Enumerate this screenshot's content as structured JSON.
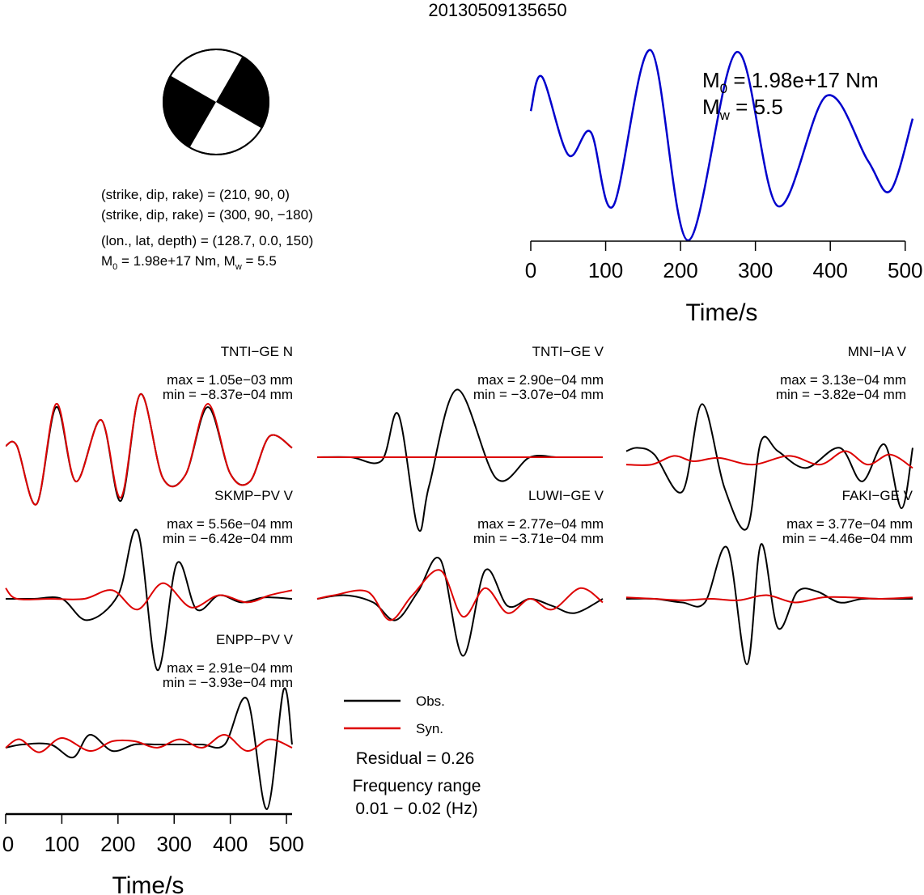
{
  "title": "20130509135650",
  "beachball": {
    "fault1": "(strike, dip, rake) = (210, 90, 0)",
    "fault2": "(strike, dip, rake) = (300, 90, −180)",
    "location": "(lon., lat, depth) = (128.7, 0.0, 150)",
    "moment_line": {
      "m0_prefix": "M",
      "m0_sub": "0",
      "m0_value": " = 1.98e+17 Nm, M",
      "mw_sub": "w",
      "mw_value": " = 5.5"
    }
  },
  "stf": {
    "m0_main": "M",
    "m0_sub": "0",
    "m0_value": " = 1.98e+17 Nm",
    "mw_main": "M",
    "mw_sub": "w",
    "mw_value": " = 5.5"
  },
  "legend": {
    "obs": "Obs.",
    "syn": "Syn."
  },
  "residual": "Residual = 0.26",
  "freq_label": "Frequency range",
  "freq_range": "0.01 − 0.02 (Hz)",
  "colors": {
    "obs": "#000000",
    "syn": "#dd0000",
    "stf": "#0000cc"
  },
  "chart_data": [
    {
      "type": "line",
      "name": "source-time-function",
      "xlabel": "Time/s",
      "xlim": [
        0,
        510
      ],
      "xticks": [
        "0",
        "100",
        "200",
        "300",
        "400",
        "500"
      ],
      "series": [
        {
          "x": [
            0,
            15,
            50,
            80,
            110,
            160,
            210,
            275,
            330,
            395,
            450,
            480,
            510
          ],
          "y": [
            0.68,
            0.86,
            0.45,
            0.57,
            0.18,
            1.0,
            0.0,
            0.99,
            0.18,
            0.76,
            0.42,
            0.26,
            0.64
          ]
        }
      ]
    },
    {
      "type": "line",
      "name": "waveform-comparison",
      "xlabel": "Time/s",
      "xlim": [
        0,
        510
      ],
      "xticks": [
        "0",
        "100",
        "200",
        "300",
        "400",
        "500"
      ],
      "series_names": [
        "Obs.",
        "Syn."
      ],
      "stations": [
        {
          "label": "TNTI−GE N",
          "max": "max = 1.05e−03 mm",
          "min": "min = −8.37e−04 mm",
          "obs": {
            "x": [
              0,
              20,
              55,
              90,
              125,
              170,
              205,
              240,
              280,
              320,
              360,
              400,
              435,
              470,
              510
            ],
            "y": [
              0.05,
              0.05,
              -0.85,
              0.65,
              -0.5,
              0.45,
              -0.8,
              0.85,
              -0.45,
              -0.4,
              0.65,
              -0.38,
              -0.5,
              0.2,
              0.02
            ]
          },
          "syn": {
            "x": [
              0,
              20,
              55,
              90,
              125,
              170,
              205,
              240,
              280,
              320,
              360,
              400,
              435,
              470,
              510
            ],
            "y": [
              0.05,
              0.05,
              -0.85,
              0.7,
              -0.5,
              0.45,
              -0.75,
              0.85,
              -0.45,
              -0.4,
              0.7,
              -0.38,
              -0.5,
              0.2,
              0.02
            ]
          }
        },
        {
          "label": "TNTI−GE V",
          "max": "max = 2.90e−04 mm",
          "min": "min = −3.07e−04 mm",
          "obs": {
            "x": [
              0,
              60,
              115,
              145,
              180,
              200,
              250,
              320,
              380,
              430,
              490,
              510
            ],
            "y": [
              0.0,
              0.0,
              -0.05,
              0.6,
              -1.0,
              -0.4,
              0.95,
              -0.3,
              0.0,
              0.0,
              0.0,
              0.0
            ]
          },
          "syn": {
            "x": [
              0,
              510
            ],
            "y": [
              0.0,
              0.0
            ]
          }
        },
        {
          "label": "MNI−IA V",
          "max": "max = 3.13e−04 mm",
          "min": "min = −3.82e−04 mm",
          "obs": {
            "x": [
              0,
              20,
              50,
              100,
              135,
              175,
              215,
              240,
              270,
              320,
              380,
              420,
              460,
              490,
              510
            ],
            "y": [
              0.15,
              0.2,
              0.1,
              -0.45,
              0.85,
              -0.4,
              -1.0,
              0.3,
              0.15,
              -0.1,
              0.2,
              -0.3,
              0.25,
              -0.7,
              0.2
            ]
          },
          "syn": {
            "x": [
              0,
              45,
              85,
              120,
              165,
              225,
              290,
              345,
              390,
              430,
              470,
              510
            ],
            "y": [
              -0.05,
              -0.05,
              0.08,
              0.0,
              0.05,
              -0.05,
              0.08,
              -0.05,
              0.15,
              -0.05,
              0.1,
              -0.1
            ]
          }
        },
        {
          "label": "SKMP−PV V",
          "max": "max = 5.56e−04 mm",
          "min": "min = −6.42e−04 mm",
          "obs": {
            "x": [
              0,
              50,
              100,
              145,
              200,
              235,
              270,
              305,
              340,
              380,
              420,
              460,
              510
            ],
            "y": [
              0.0,
              0.0,
              0.0,
              -0.3,
              0.05,
              0.95,
              -1.0,
              0.5,
              -0.15,
              0.05,
              -0.05,
              0.02,
              0.0
            ]
          },
          "syn": {
            "x": [
              0,
              20,
              80,
              140,
              190,
              235,
              280,
              330,
              380,
              430,
              470,
              510
            ],
            "y": [
              0.15,
              0.0,
              0.0,
              0.0,
              0.12,
              -0.15,
              0.22,
              -0.12,
              0.05,
              -0.05,
              0.05,
              0.12
            ]
          }
        },
        {
          "label": "LUWI−GE V",
          "max": "max = 2.77e−04 mm",
          "min": "min = −3.71e−04 mm",
          "obs": {
            "x": [
              0,
              50,
              100,
              140,
              180,
              220,
              260,
              300,
              340,
              380,
              420,
              460,
              510
            ],
            "y": [
              0.0,
              0.05,
              -0.05,
              -0.3,
              0.1,
              0.55,
              -0.8,
              0.4,
              -0.1,
              0.0,
              -0.1,
              -0.2,
              0.0
            ]
          },
          "syn": {
            "x": [
              0,
              30,
              90,
              130,
              170,
              220,
              260,
              300,
              340,
              380,
              420,
              470,
              510
            ],
            "y": [
              0.0,
              0.05,
              0.1,
              -0.3,
              0.05,
              0.4,
              -0.25,
              0.15,
              -0.2,
              0.0,
              -0.15,
              0.15,
              -0.05
            ]
          }
        },
        {
          "label": "FAKI−GE V",
          "max": "max = 3.77e−04 mm",
          "min": "min = −4.46e−04 mm",
          "obs": {
            "x": [
              0,
              50,
              100,
              140,
              180,
              215,
              240,
              270,
              305,
              340,
              380,
              420,
              460,
              510
            ],
            "y": [
              0.0,
              0.0,
              -0.05,
              -0.05,
              0.7,
              -0.9,
              0.75,
              -0.4,
              0.1,
              0.1,
              -0.05,
              0.0,
              0.0,
              0.0
            ]
          },
          "syn": {
            "x": [
              0,
              50,
              100,
              150,
              200,
              250,
              300,
              350,
              400,
              450,
              510
            ],
            "y": [
              0.02,
              0.0,
              -0.02,
              0.0,
              -0.02,
              0.05,
              -0.05,
              0.02,
              0.02,
              0.0,
              0.02
            ]
          }
        },
        {
          "label": "ENPP−PV V",
          "max": "max = 2.91e−04 mm",
          "min": "min = −3.93e−04 mm",
          "obs": {
            "x": [
              0,
              30,
              80,
              120,
              150,
              190,
              230,
              270,
              310,
              350,
              390,
              430,
              465,
              495,
              510
            ],
            "y": [
              -0.05,
              0.0,
              0.0,
              -0.2,
              0.15,
              -0.1,
              0.0,
              0.0,
              0.0,
              0.0,
              0.0,
              0.7,
              -1.0,
              0.85,
              0.0
            ]
          },
          "syn": {
            "x": [
              0,
              25,
              60,
              100,
              150,
              190,
              230,
              270,
              310,
              350,
              390,
              430,
              470,
              510
            ],
            "y": [
              -0.05,
              0.08,
              -0.12,
              0.1,
              -0.1,
              0.05,
              0.05,
              -0.05,
              0.08,
              -0.05,
              0.15,
              -0.1,
              0.08,
              -0.05
            ]
          }
        }
      ]
    }
  ]
}
